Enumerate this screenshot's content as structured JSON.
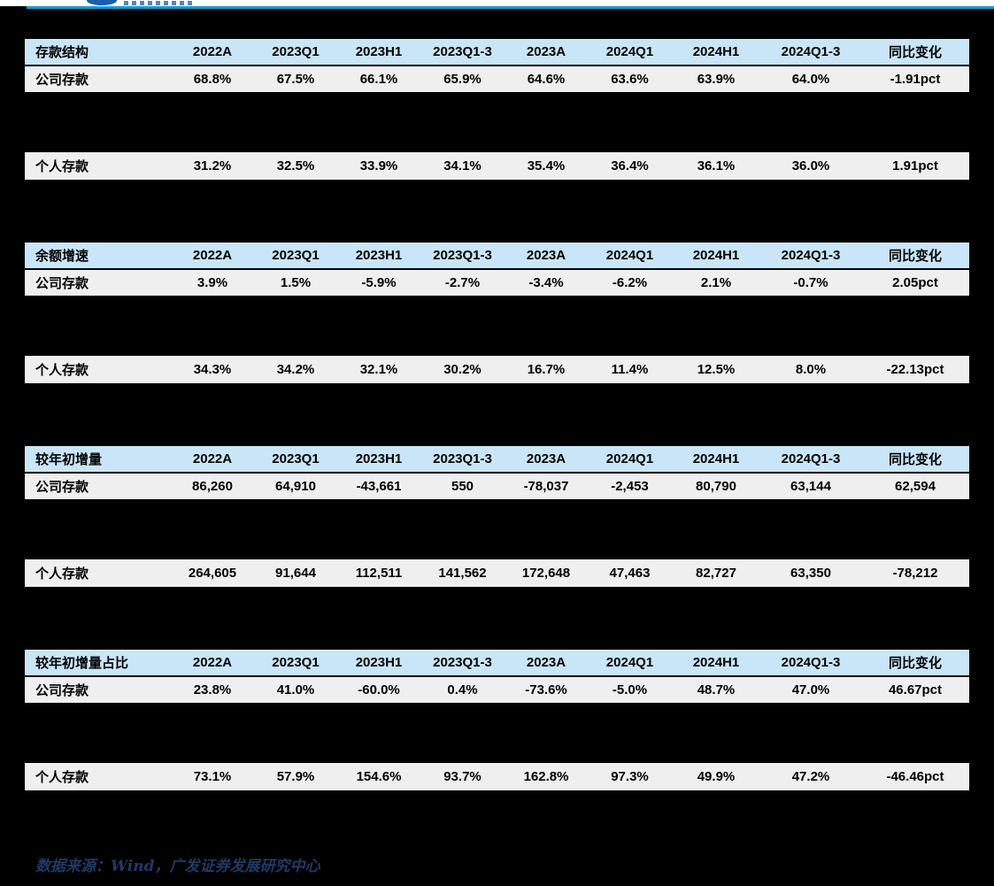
{
  "columns": [
    "2022A",
    "2023Q1",
    "2023H1",
    "2023Q1-3",
    "2023A",
    "2024Q1",
    "2024H1",
    "2024Q1-3",
    "同比变化"
  ],
  "tables": [
    {
      "title": "存款结构",
      "rows": [
        {
          "label": "公司存款",
          "values": [
            "68.8%",
            "67.5%",
            "66.1%",
            "65.9%",
            "64.6%",
            "63.6%",
            "63.9%",
            "64.0%",
            "-1.91pct"
          ]
        },
        {
          "label": "个人存款",
          "values": [
            "31.2%",
            "32.5%",
            "33.9%",
            "34.1%",
            "35.4%",
            "36.4%",
            "36.1%",
            "36.0%",
            "1.91pct"
          ]
        }
      ]
    },
    {
      "title": "余额增速",
      "rows": [
        {
          "label": "公司存款",
          "values": [
            "3.9%",
            "1.5%",
            "-5.9%",
            "-2.7%",
            "-3.4%",
            "-6.2%",
            "2.1%",
            "-0.7%",
            "2.05pct"
          ]
        },
        {
          "label": "个人存款",
          "values": [
            "34.3%",
            "34.2%",
            "32.1%",
            "30.2%",
            "16.7%",
            "11.4%",
            "12.5%",
            "8.0%",
            "-22.13pct"
          ]
        }
      ]
    },
    {
      "title": "较年初增量",
      "rows": [
        {
          "label": "公司存款",
          "values": [
            "86,260",
            "64,910",
            "-43,661",
            "550",
            "-78,037",
            "-2,453",
            "80,790",
            "63,144",
            "62,594"
          ]
        },
        {
          "label": "个人存款",
          "values": [
            "264,605",
            "91,644",
            "112,511",
            "141,562",
            "172,648",
            "47,463",
            "82,727",
            "63,350",
            "-78,212"
          ]
        }
      ]
    },
    {
      "title": "较年初增量占比",
      "rows": [
        {
          "label": "公司存款",
          "values": [
            "23.8%",
            "41.0%",
            "-60.0%",
            "0.4%",
            "-73.6%",
            "-5.0%",
            "48.7%",
            "47.0%",
            "46.67pct"
          ]
        },
        {
          "label": "个人存款",
          "values": [
            "73.1%",
            "57.9%",
            "154.6%",
            "93.7%",
            "162.8%",
            "97.3%",
            "49.9%",
            "47.2%",
            "-46.46pct"
          ]
        }
      ]
    }
  ],
  "footer": {
    "source_text": "数据来源：Wind，广发证券发展研究中心"
  },
  "colors": {
    "page_background": "#000000",
    "brand_bar": "#0d9cdb",
    "table_header_bg": "#c9e6f8",
    "table_row_bg": "#efefef",
    "cell_text": "#000000",
    "footer_text": "#1e3a66"
  }
}
